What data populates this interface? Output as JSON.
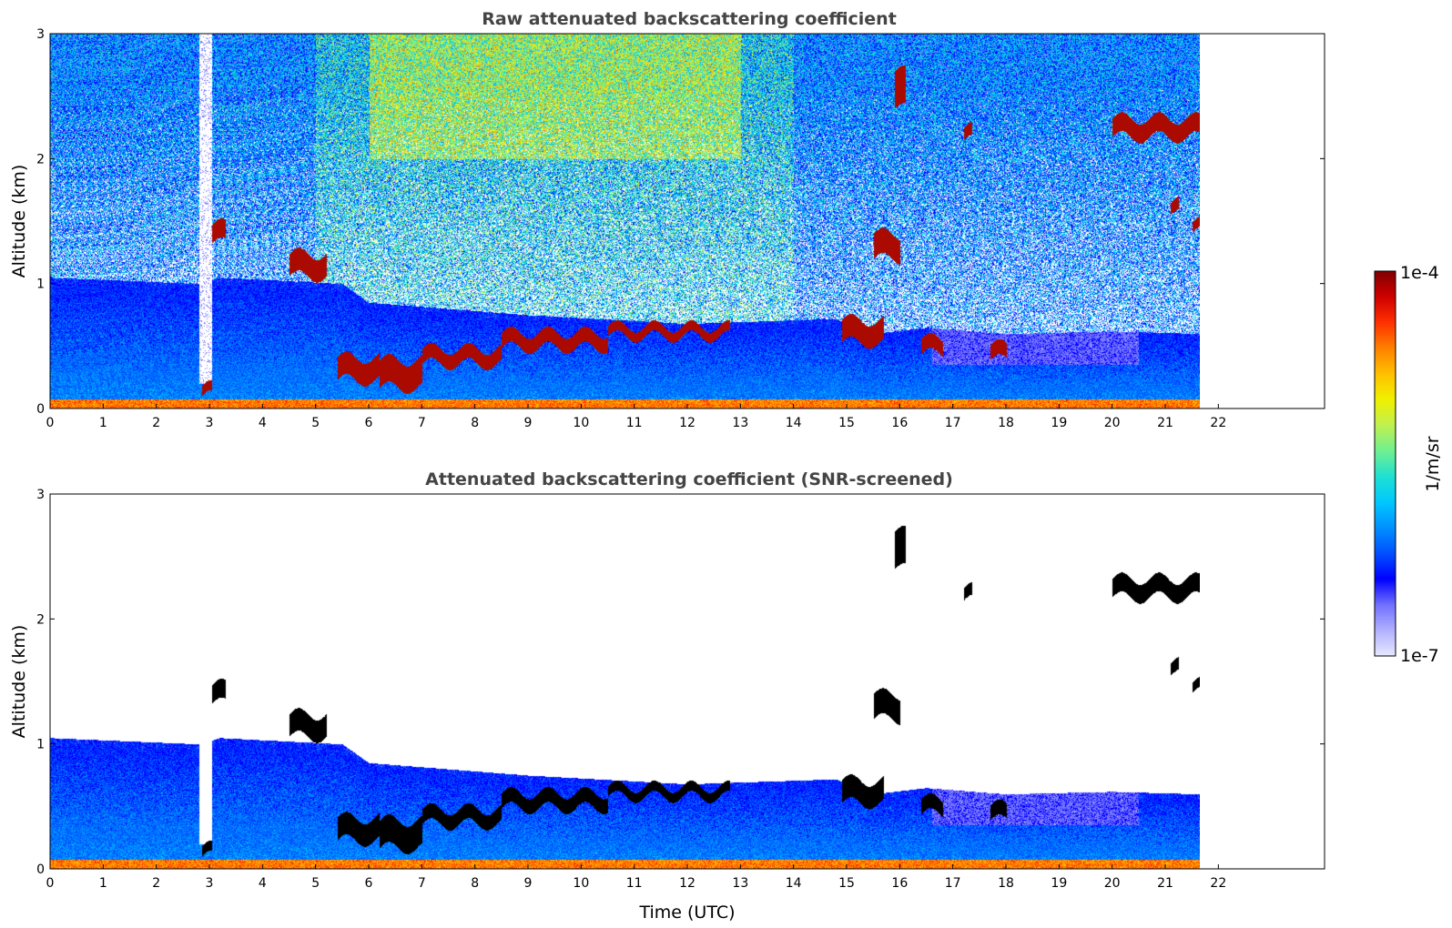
{
  "chart_data": [
    {
      "type": "heatmap",
      "title": "Raw attenuated backscattering coefficient",
      "xlabel": "",
      "ylabel": "Altitude (km)",
      "xticks": [
        "0",
        "1",
        "2",
        "3",
        "4",
        "5",
        "6",
        "7",
        "8",
        "9",
        "10",
        "11",
        "12",
        "13",
        "14",
        "15",
        "16",
        "17",
        "18",
        "19",
        "20",
        "21",
        "22"
      ],
      "yticks": [
        "0",
        "1",
        "2",
        "3"
      ],
      "xlim": [
        0,
        24
      ],
      "ylim": [
        0,
        3
      ],
      "data_end_hour": 21.65,
      "boundary_layer_top_km": [
        [
          0,
          1.05
        ],
        [
          2.8,
          1.0
        ],
        [
          3.2,
          1.05
        ],
        [
          5.5,
          1.0
        ],
        [
          6,
          0.85
        ],
        [
          9,
          0.75
        ],
        [
          12,
          0.68
        ],
        [
          14.8,
          0.72
        ],
        [
          15.5,
          0.6
        ],
        [
          16.5,
          0.65
        ],
        [
          18,
          0.6
        ],
        [
          20,
          0.62
        ],
        [
          21.65,
          0.6
        ]
      ],
      "cloud_layers": [
        {
          "start": 2.85,
          "end": 3.05,
          "alt": 0.14,
          "thickness": 0.08
        },
        {
          "start": 3.05,
          "end": 3.3,
          "alt": 1.4,
          "thickness": 0.15
        },
        {
          "start": 4.5,
          "end": 5.2,
          "alt": 1.15,
          "thickness": 0.18
        },
        {
          "start": 5.4,
          "end": 6.2,
          "alt": 0.32,
          "thickness": 0.18
        },
        {
          "start": 6.2,
          "end": 7.0,
          "alt": 0.28,
          "thickness": 0.22
        },
        {
          "start": 7.0,
          "end": 8.5,
          "alt": 0.42,
          "thickness": 0.12
        },
        {
          "start": 8.5,
          "end": 10.5,
          "alt": 0.55,
          "thickness": 0.12
        },
        {
          "start": 10.5,
          "end": 12.8,
          "alt": 0.62,
          "thickness": 0.08
        },
        {
          "start": 14.9,
          "end": 15.7,
          "alt": 0.62,
          "thickness": 0.18
        },
        {
          "start": 15.5,
          "end": 16.0,
          "alt": 1.3,
          "thickness": 0.2
        },
        {
          "start": 15.9,
          "end": 16.1,
          "alt": 2.55,
          "thickness": 0.3
        },
        {
          "start": 16.4,
          "end": 16.8,
          "alt": 0.5,
          "thickness": 0.12
        },
        {
          "start": 17.2,
          "end": 17.35,
          "alt": 2.2,
          "thickness": 0.1
        },
        {
          "start": 17.7,
          "end": 18.0,
          "alt": 0.45,
          "thickness": 0.12
        },
        {
          "start": 20.0,
          "end": 21.65,
          "alt": 2.25,
          "thickness": 0.15
        },
        {
          "start": 21.1,
          "end": 21.25,
          "alt": 1.6,
          "thickness": 0.1
        },
        {
          "start": 21.5,
          "end": 21.65,
          "alt": 1.45,
          "thickness": 0.08
        }
      ]
    },
    {
      "type": "heatmap",
      "title": "Attenuated backscattering coefficient (SNR-screened)",
      "xlabel": "Time (UTC)",
      "ylabel": "Altitude (km)",
      "xticks": [
        "0",
        "1",
        "2",
        "3",
        "4",
        "5",
        "6",
        "7",
        "8",
        "9",
        "10",
        "11",
        "12",
        "13",
        "14",
        "15",
        "16",
        "17",
        "18",
        "19",
        "20",
        "21",
        "22"
      ],
      "yticks": [
        "0",
        "1",
        "2",
        "3"
      ],
      "xlim": [
        0,
        24
      ],
      "ylim": [
        0,
        3
      ],
      "data_end_hour": 21.65,
      "cloud_color": "#000000"
    }
  ],
  "colorbar": {
    "label": "1/m/sr",
    "max_label": "1e-4",
    "min_label": "1e-7",
    "colors": [
      "#e8e8ff",
      "#b0b0ff",
      "#7070ff",
      "#0000ff",
      "#0050ff",
      "#0090ff",
      "#00c8ff",
      "#20e0d0",
      "#70f090",
      "#c0f050",
      "#f0f000",
      "#ffc000",
      "#ff8000",
      "#ff3000",
      "#d00000",
      "#800000"
    ]
  }
}
